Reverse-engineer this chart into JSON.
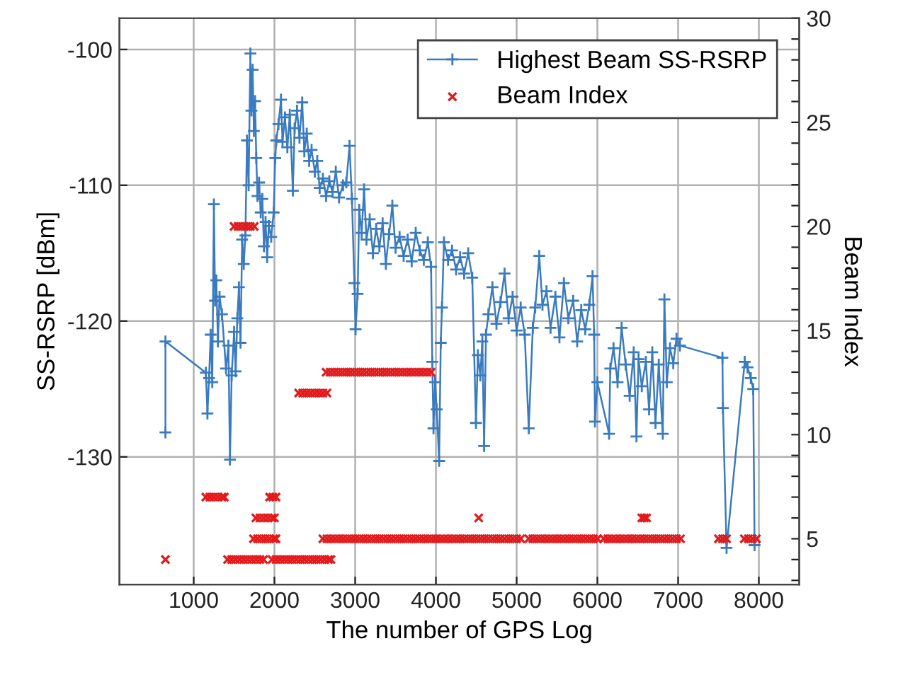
{
  "chart_data": {
    "type": "line",
    "xlabel": "The number of GPS Log",
    "ylabel": "SS-RSRP [dBm]",
    "y2label": "Beam Index",
    "xlim": [
      80,
      8500
    ],
    "xticks": [
      1000,
      2000,
      3000,
      4000,
      5000,
      6000,
      7000,
      8000
    ],
    "ylim": [
      -139.4,
      -97.7
    ],
    "yticks": [
      -130,
      -120,
      -110,
      -100
    ],
    "y2lim": [
      2.8,
      30
    ],
    "y2ticks": [
      {
        "value": 3,
        "label": null
      },
      {
        "value": 4,
        "label": null
      },
      5,
      {
        "value": 6,
        "label": null
      },
      {
        "value": 7,
        "label": null
      },
      {
        "value": 8,
        "label": null
      },
      {
        "value": 9,
        "label": null
      },
      10,
      {
        "value": 11,
        "label": null
      },
      {
        "value": 12,
        "label": null
      },
      {
        "value": 13,
        "label": null
      },
      {
        "value": 14,
        "label": null
      },
      15,
      {
        "value": 16,
        "label": null
      },
      {
        "value": 17,
        "label": null
      },
      {
        "value": 18,
        "label": null
      },
      {
        "value": 19,
        "label": null
      },
      20,
      {
        "value": 21,
        "label": null
      },
      {
        "value": 22,
        "label": null
      },
      {
        "value": 23,
        "label": null
      },
      {
        "value": 24,
        "label": null
      },
      25,
      {
        "value": 26,
        "label": null
      },
      {
        "value": 27,
        "label": null
      },
      {
        "value": 28,
        "label": null
      },
      {
        "value": 29,
        "label": null
      },
      30
    ],
    "grid": true,
    "legend": "top right",
    "series": [
      {
        "name": "Highest Beam SS-RSRP",
        "color": "#3a7bbf",
        "marker": "cross",
        "line_style": "solid",
        "x": [
          650,
          650,
          1150,
          1170,
          1190,
          1210,
          1230,
          1250,
          1265,
          1280,
          1300,
          1320,
          1350,
          1400,
          1430,
          1449,
          1470,
          1500,
          1520,
          1540,
          1560,
          1580,
          1600,
          1620,
          1640,
          1660,
          1680,
          1702,
          1715,
          1730,
          1745,
          1760,
          1775,
          1790,
          1810,
          1830,
          1850,
          1870,
          1890,
          1910,
          1930,
          1960,
          1990,
          2010,
          2023,
          2050,
          2081,
          2100,
          2130,
          2160,
          2190,
          2228,
          2250,
          2280,
          2310,
          2344,
          2370,
          2400,
          2430,
          2460,
          2500,
          2530,
          2560,
          2600,
          2640,
          2680,
          2720,
          2760,
          2800,
          2850,
          2890,
          2930,
          2960,
          2990,
          3005,
          3030,
          3050,
          3080,
          3110,
          3140,
          3180,
          3220,
          3260,
          3300,
          3340,
          3380,
          3420,
          3460,
          3500,
          3550,
          3600,
          3650,
          3700,
          3750,
          3800,
          3850,
          3900,
          3940,
          3955,
          3970,
          3990,
          4010,
          4040,
          4060,
          4075,
          4100,
          4150,
          4200,
          4250,
          4300,
          4350,
          4400,
          4450,
          4496,
          4520,
          4550,
          4575,
          4597,
          4620,
          4650,
          4700,
          4750,
          4800,
          4850,
          4900,
          4950,
          5000,
          5050,
          5100,
          5150,
          5200,
          5230,
          5280,
          5320,
          5370,
          5420,
          5480,
          5530,
          5585,
          5640,
          5700,
          5750,
          5800,
          5850,
          5900,
          5940,
          5960,
          5970,
          6000,
          6145,
          6160,
          6200,
          6250,
          6300,
          6350,
          6400,
          6450,
          6484,
          6510,
          6550,
          6600,
          6640,
          6680,
          6720,
          6760,
          6810,
          6830,
          6860,
          6900,
          6940,
          6980,
          7023,
          7549,
          7555,
          7600,
          7825,
          7860,
          7900,
          7930,
          7947
        ],
        "values": [
          -128.2,
          -121.5,
          -123.8,
          -126.8,
          -124.2,
          -121,
          -124.5,
          -111.4,
          -118.5,
          -117,
          -121.5,
          -118.2,
          -119.5,
          -123.5,
          -121.8,
          -130.2,
          -124,
          -120.8,
          -123.7,
          -119.8,
          -117.5,
          -121.6,
          -114,
          -115.8,
          -113.7,
          -106.7,
          -110,
          -100.3,
          -104.5,
          -101.5,
          -106,
          -103.8,
          -108,
          -110.8,
          -109.8,
          -112,
          -111,
          -114.5,
          -112.7,
          -115.3,
          -113,
          -113.8,
          -112,
          -108,
          -106.7,
          -105.5,
          -103.7,
          -106.8,
          -105,
          -107.2,
          -104.8,
          -110.4,
          -105.8,
          -104.5,
          -106.5,
          -103.9,
          -107.5,
          -106.2,
          -108.2,
          -107.4,
          -109,
          -108.2,
          -110.2,
          -109.5,
          -110.8,
          -109.7,
          -110.5,
          -109,
          -110.9,
          -110,
          -109.8,
          -107.1,
          -111,
          -117.2,
          -120.6,
          -118,
          -111.8,
          -113.5,
          -110.3,
          -114,
          -112.5,
          -115,
          -113.2,
          -114.5,
          -112.8,
          -115.8,
          -113.6,
          -111.5,
          -114.6,
          -113.8,
          -115.2,
          -114,
          -115.6,
          -113.5,
          -114.8,
          -115.5,
          -114.2,
          -116,
          -123,
          -127.9,
          -124.5,
          -126.5,
          -130.3,
          -121.6,
          -119,
          -114.2,
          -115.5,
          -114.8,
          -116.2,
          -115.3,
          -116.5,
          -115,
          -116.8,
          -127.5,
          -122.5,
          -124,
          -121.5,
          -129.2,
          -121,
          -119.5,
          -117.5,
          -120.2,
          -118.6,
          -116.5,
          -119.8,
          -118.2,
          -120.7,
          -119,
          -121,
          -127.9,
          -120.5,
          -119,
          -115.2,
          -118.8,
          -117.8,
          -120.5,
          -118.2,
          -121.2,
          -117.2,
          -119.8,
          -118.5,
          -121.5,
          -119.2,
          -120.6,
          -118.8,
          -116.7,
          -121,
          -127.4,
          -124.5,
          -128.3,
          -123.5,
          -122,
          -124.5,
          -120.5,
          -123.2,
          -125.5,
          -122.3,
          -128.5,
          -122.8,
          -124.8,
          -123,
          -126.5,
          -122.3,
          -127.5,
          -123.2,
          -128.3,
          -118.4,
          -124.5,
          -122,
          -123.1,
          -121.3,
          -121.8,
          -122.7,
          -126.4,
          -136.7,
          -123,
          -123.4,
          -124.2,
          -125,
          -136.5
        ]
      },
      {
        "name": "Beam Index",
        "type": "scatter",
        "axis": "y2",
        "color": "#e31a1c",
        "marker": "cross",
        "x": [
          650,
          1150,
          1200,
          1250,
          1300,
          1350,
          1380,
          1420,
          1470,
          1520,
          1570,
          1620,
          1670,
          1720,
          1770,
          1820,
          1865,
          1500,
          1550,
          1600,
          1650,
          1700,
          1750,
          1740,
          1790,
          1840,
          1890,
          1940,
          1990,
          2020,
          1770,
          1820,
          1870,
          1920,
          1970,
          2000,
          1940,
          1980,
          2020,
          1970,
          2020,
          2070,
          2120,
          2170,
          2220,
          2270,
          2320,
          2370,
          2420,
          2470,
          2520,
          2570,
          2620,
          2670,
          2700,
          2300,
          2350,
          2400,
          2450,
          2500,
          2550,
          2600,
          2650,
          2640,
          2690,
          2740,
          2790,
          2840,
          2890,
          2940,
          2990,
          3040,
          3090,
          3140,
          3190,
          3240,
          3290,
          3340,
          3390,
          3440,
          3490,
          3540,
          3590,
          3640,
          3690,
          3740,
          3790,
          3840,
          3890,
          3940,
          2600,
          2650,
          2700,
          2750,
          2800,
          2850,
          2900,
          2950,
          3000,
          3050,
          3100,
          3150,
          3200,
          3250,
          3300,
          3350,
          3400,
          3450,
          3500,
          3550,
          3600,
          3650,
          3700,
          3750,
          3800,
          3850,
          3900,
          3950,
          4000,
          4050,
          4100,
          4150,
          4200,
          4250,
          4300,
          4350,
          4400,
          4450,
          4500,
          4550,
          4600,
          4650,
          4700,
          4750,
          4800,
          4850,
          4900,
          4950,
          5000,
          5050,
          4530,
          6550,
          6580,
          6610,
          5150,
          5200,
          5250,
          5300,
          5350,
          5400,
          5450,
          5500,
          5550,
          5600,
          5650,
          5700,
          5750,
          5800,
          5850,
          5900,
          5950,
          6000,
          6080,
          6130,
          6180,
          6230,
          6280,
          6330,
          6380,
          6430,
          6480,
          6530,
          6580,
          6630,
          6680,
          6730,
          6780,
          6830,
          6880,
          6930,
          6980,
          7030,
          7500,
          7550,
          7600,
          7820,
          7870,
          7920,
          7970
        ],
        "values": [
          4,
          7,
          7,
          7,
          7,
          7,
          7,
          4,
          4,
          4,
          4,
          4,
          4,
          4,
          4,
          4,
          4,
          20,
          20,
          20,
          20,
          20,
          20,
          5,
          5,
          5,
          5,
          5,
          5,
          5,
          6,
          6,
          6,
          6,
          6,
          6,
          7,
          7,
          7,
          4,
          4,
          4,
          4,
          4,
          4,
          4,
          4,
          4,
          4,
          4,
          4,
          4,
          4,
          4,
          4,
          12,
          12,
          12,
          12,
          12,
          12,
          12,
          12,
          13,
          13,
          13,
          13,
          13,
          13,
          13,
          13,
          13,
          13,
          13,
          13,
          13,
          13,
          13,
          13,
          13,
          13,
          13,
          13,
          13,
          13,
          13,
          13,
          13,
          13,
          13,
          5,
          5,
          5,
          5,
          5,
          5,
          5,
          5,
          5,
          5,
          5,
          5,
          5,
          5,
          5,
          5,
          5,
          5,
          5,
          5,
          5,
          5,
          5,
          5,
          5,
          5,
          5,
          5,
          5,
          5,
          5,
          5,
          5,
          5,
          5,
          5,
          5,
          5,
          5,
          5,
          5,
          5,
          5,
          5,
          5,
          5,
          5,
          5,
          5,
          5,
          6,
          6,
          6,
          6,
          5,
          5,
          5,
          5,
          5,
          5,
          5,
          5,
          5,
          5,
          5,
          5,
          5,
          5,
          5,
          5,
          5,
          5,
          5,
          5,
          5,
          5,
          5,
          5,
          5,
          5,
          5,
          5,
          5,
          5,
          5,
          5,
          5,
          5,
          5,
          5,
          5,
          5,
          5,
          5,
          5,
          5,
          5,
          5,
          5
        ]
      }
    ]
  }
}
